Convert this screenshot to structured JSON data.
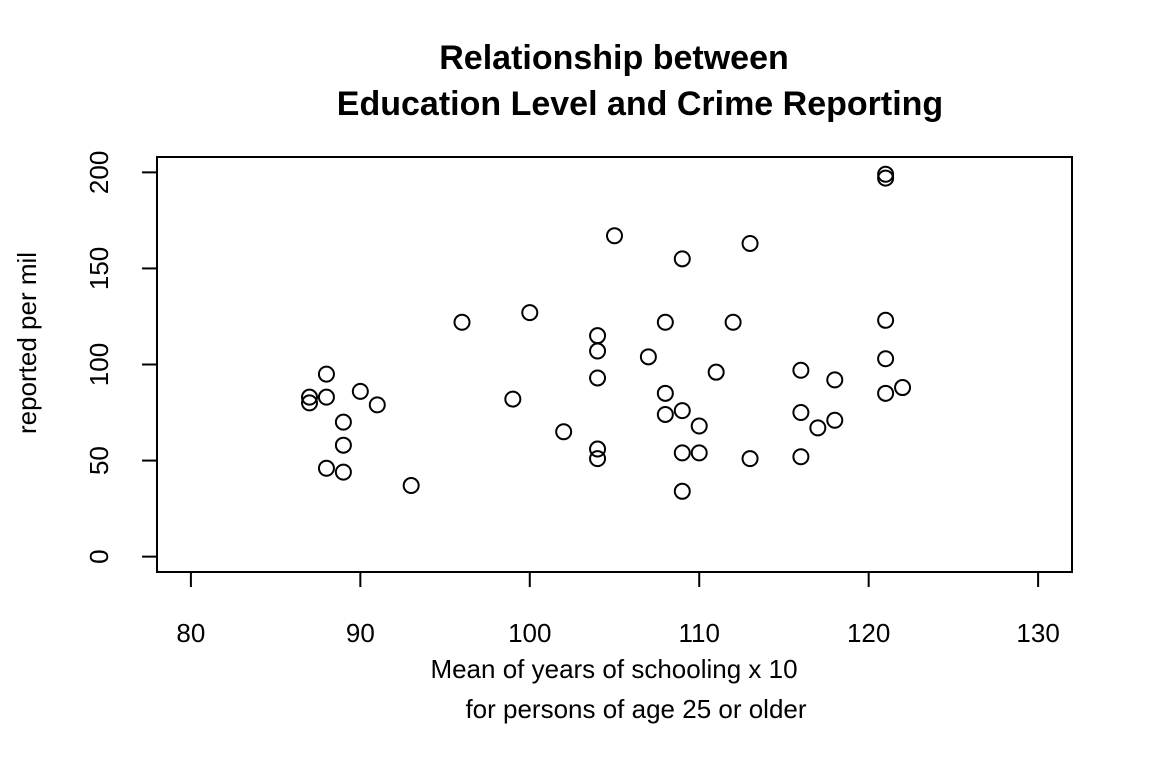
{
  "chart_data": {
    "type": "scatter",
    "title_lines": [
      "Relationship between",
      "Education Level and Crime Reporting"
    ],
    "xlabel_lines": [
      "Mean of years of schooling x 10",
      "for persons of age 25 or older"
    ],
    "ylabel": "reported per mil",
    "xlim": [
      78,
      132
    ],
    "ylim": [
      -8,
      208
    ],
    "x_ticks": [
      80,
      90,
      100,
      110,
      120,
      130
    ],
    "y_ticks": [
      0,
      50,
      100,
      150,
      200
    ],
    "x_tick_labels": [
      "80",
      "90",
      "100",
      "110",
      "120",
      "130"
    ],
    "y_tick_labels": [
      "0",
      "50",
      "100",
      "150",
      "200"
    ],
    "grid": false,
    "legend": "none",
    "marker": "open-circle",
    "color": "#000000",
    "points": [
      [
        87,
        83
      ],
      [
        87,
        80
      ],
      [
        88,
        95
      ],
      [
        88,
        83
      ],
      [
        88,
        46
      ],
      [
        89,
        70
      ],
      [
        89,
        58
      ],
      [
        89,
        44
      ],
      [
        90,
        86
      ],
      [
        91,
        79
      ],
      [
        93,
        37
      ],
      [
        96,
        122
      ],
      [
        99,
        82
      ],
      [
        100,
        127
      ],
      [
        102,
        65
      ],
      [
        104,
        115
      ],
      [
        104,
        107
      ],
      [
        104,
        93
      ],
      [
        104,
        56
      ],
      [
        104,
        51
      ],
      [
        105,
        167
      ],
      [
        107,
        104
      ],
      [
        108,
        122
      ],
      [
        108,
        85
      ],
      [
        108,
        74
      ],
      [
        109,
        155
      ],
      [
        109,
        76
      ],
      [
        109,
        54
      ],
      [
        109,
        34
      ],
      [
        110,
        68
      ],
      [
        110,
        54
      ],
      [
        111,
        96
      ],
      [
        112,
        122
      ],
      [
        113,
        163
      ],
      [
        113,
        51
      ],
      [
        116,
        97
      ],
      [
        116,
        75
      ],
      [
        116,
        52
      ],
      [
        117,
        67
      ],
      [
        118,
        92
      ],
      [
        118,
        71
      ],
      [
        121,
        199
      ],
      [
        121,
        197
      ],
      [
        121,
        123
      ],
      [
        121,
        103
      ],
      [
        121,
        85
      ],
      [
        122,
        88
      ]
    ]
  }
}
